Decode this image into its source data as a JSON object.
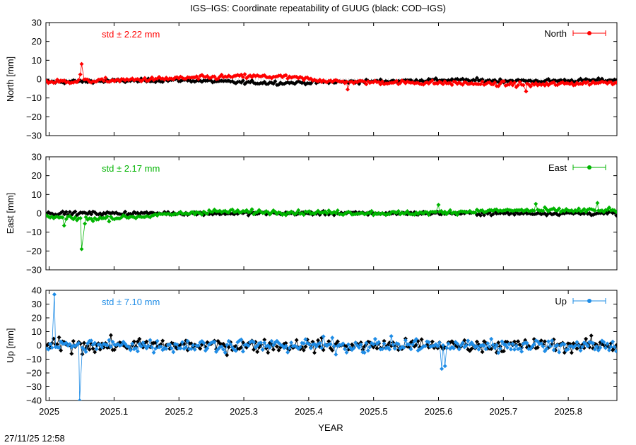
{
  "title": "IGS–IGS: Coordinate repeatability of GUUG (black: COD–IGS)",
  "timestamp": "27/11/25 12:58",
  "chart_data": {
    "type": "scatter",
    "title": "IGS–IGS: Coordinate repeatability of GUUG (black: COD–IGS)",
    "xlabel": "YEAR",
    "xlim": [
      2024.995,
      2025.875
    ],
    "xticks": [
      2025,
      2025.1,
      2025.2,
      2025.3,
      2025.4,
      2025.5,
      2025.6,
      2025.7,
      2025.8
    ],
    "x_tick_labels": [
      "2025",
      "2025.1",
      "2025.2",
      "2025.3",
      "2025.4",
      "2025.5",
      "2025.6",
      "2025.7",
      "2025.8"
    ],
    "grid": false,
    "legend_placement": "top-right",
    "panels": [
      {
        "component": "North",
        "ylabel": "North [mm]",
        "ylim": [
          -30,
          30
        ],
        "yticks": [
          -30,
          -20,
          -10,
          0,
          10,
          20,
          30
        ],
        "y_tick_labels": [
          "−30",
          "−20",
          "−10",
          "0",
          "10",
          "20",
          "30"
        ],
        "legend": "North",
        "std_label": "std ± 2.22 mm",
        "color": "#ff0000",
        "background_color": "#000000",
        "trend": [
          [
            2024.995,
            -1.5
          ],
          [
            2025.12,
            -0.5
          ],
          [
            2025.3,
            1.5
          ],
          [
            2025.36,
            1.2
          ],
          [
            2025.45,
            -1.5
          ],
          [
            2025.6,
            -2.0
          ],
          [
            2025.75,
            -3.0
          ],
          [
            2025.875,
            -1.5
          ]
        ],
        "trend_noise": 1.5,
        "bg_trend": [
          [
            2024.995,
            -1.5
          ],
          [
            2025.2,
            -0.5
          ],
          [
            2025.3,
            -1.8
          ],
          [
            2025.36,
            -2.0
          ],
          [
            2025.45,
            -1.5
          ],
          [
            2025.6,
            -0.5
          ],
          [
            2025.75,
            -1.0
          ],
          [
            2025.875,
            -0.5
          ]
        ],
        "bg_noise": 1.2,
        "outliers": [
          {
            "x": 2025.05,
            "y": 8.0
          },
          {
            "x": 2025.048,
            "y": 2.5
          },
          {
            "x": 2025.46,
            "y": -5.5
          },
          {
            "x": 2025.735,
            "y": -6.5
          }
        ]
      },
      {
        "component": "East",
        "ylabel": "East [mm]",
        "ylim": [
          -30,
          30
        ],
        "yticks": [
          -30,
          -20,
          -10,
          0,
          10,
          20,
          30
        ],
        "y_tick_labels": [
          "−30",
          "−20",
          "−10",
          "0",
          "10",
          "20",
          "30"
        ],
        "legend": "East",
        "std_label": "std ± 2.17 mm",
        "color": "#00b400",
        "background_color": "#000000",
        "trend": [
          [
            2024.995,
            -2.0
          ],
          [
            2025.06,
            -3.0
          ],
          [
            2025.15,
            -1.5
          ],
          [
            2025.25,
            1.0
          ],
          [
            2025.4,
            0.5
          ],
          [
            2025.55,
            0.0
          ],
          [
            2025.7,
            1.5
          ],
          [
            2025.875,
            1.5
          ]
        ],
        "trend_noise": 1.5,
        "bg_trend": [
          [
            2024.995,
            0.0
          ],
          [
            2025.875,
            0.0
          ]
        ],
        "bg_noise": 1.2,
        "outliers": [
          {
            "x": 2025.05,
            "y": -19.0
          },
          {
            "x": 2025.055,
            "y": -5.5
          },
          {
            "x": 2025.023,
            "y": -6.5
          },
          {
            "x": 2025.6,
            "y": 4.5
          },
          {
            "x": 2025.75,
            "y": 5.0
          },
          {
            "x": 2025.845,
            "y": 5.5
          }
        ]
      },
      {
        "component": "Up",
        "ylabel": "Up [mm]",
        "ylim": [
          -40,
          40
        ],
        "yticks": [
          -40,
          -30,
          -20,
          -10,
          0,
          10,
          20,
          30,
          40
        ],
        "y_tick_labels": [
          "−40",
          "−30",
          "−20",
          "−10",
          "0",
          "10",
          "20",
          "30",
          "40"
        ],
        "legend": "Up",
        "std_label": "std ± 7.10 mm",
        "color": "#1e8ce6",
        "background_color": "#000000",
        "trend": [
          [
            2024.995,
            0.0
          ],
          [
            2025.875,
            0.0
          ]
        ],
        "trend_noise": 6.5,
        "bg_trend": [
          [
            2024.995,
            0.0
          ],
          [
            2025.875,
            0.0
          ]
        ],
        "bg_noise": 6.0,
        "outliers": [
          {
            "x": 2025.008,
            "y": 37.0
          },
          {
            "x": 2025.047,
            "y": -40.0
          },
          {
            "x": 2025.605,
            "y": -17.0
          },
          {
            "x": 2025.61,
            "y": -15.0
          }
        ]
      }
    ]
  }
}
